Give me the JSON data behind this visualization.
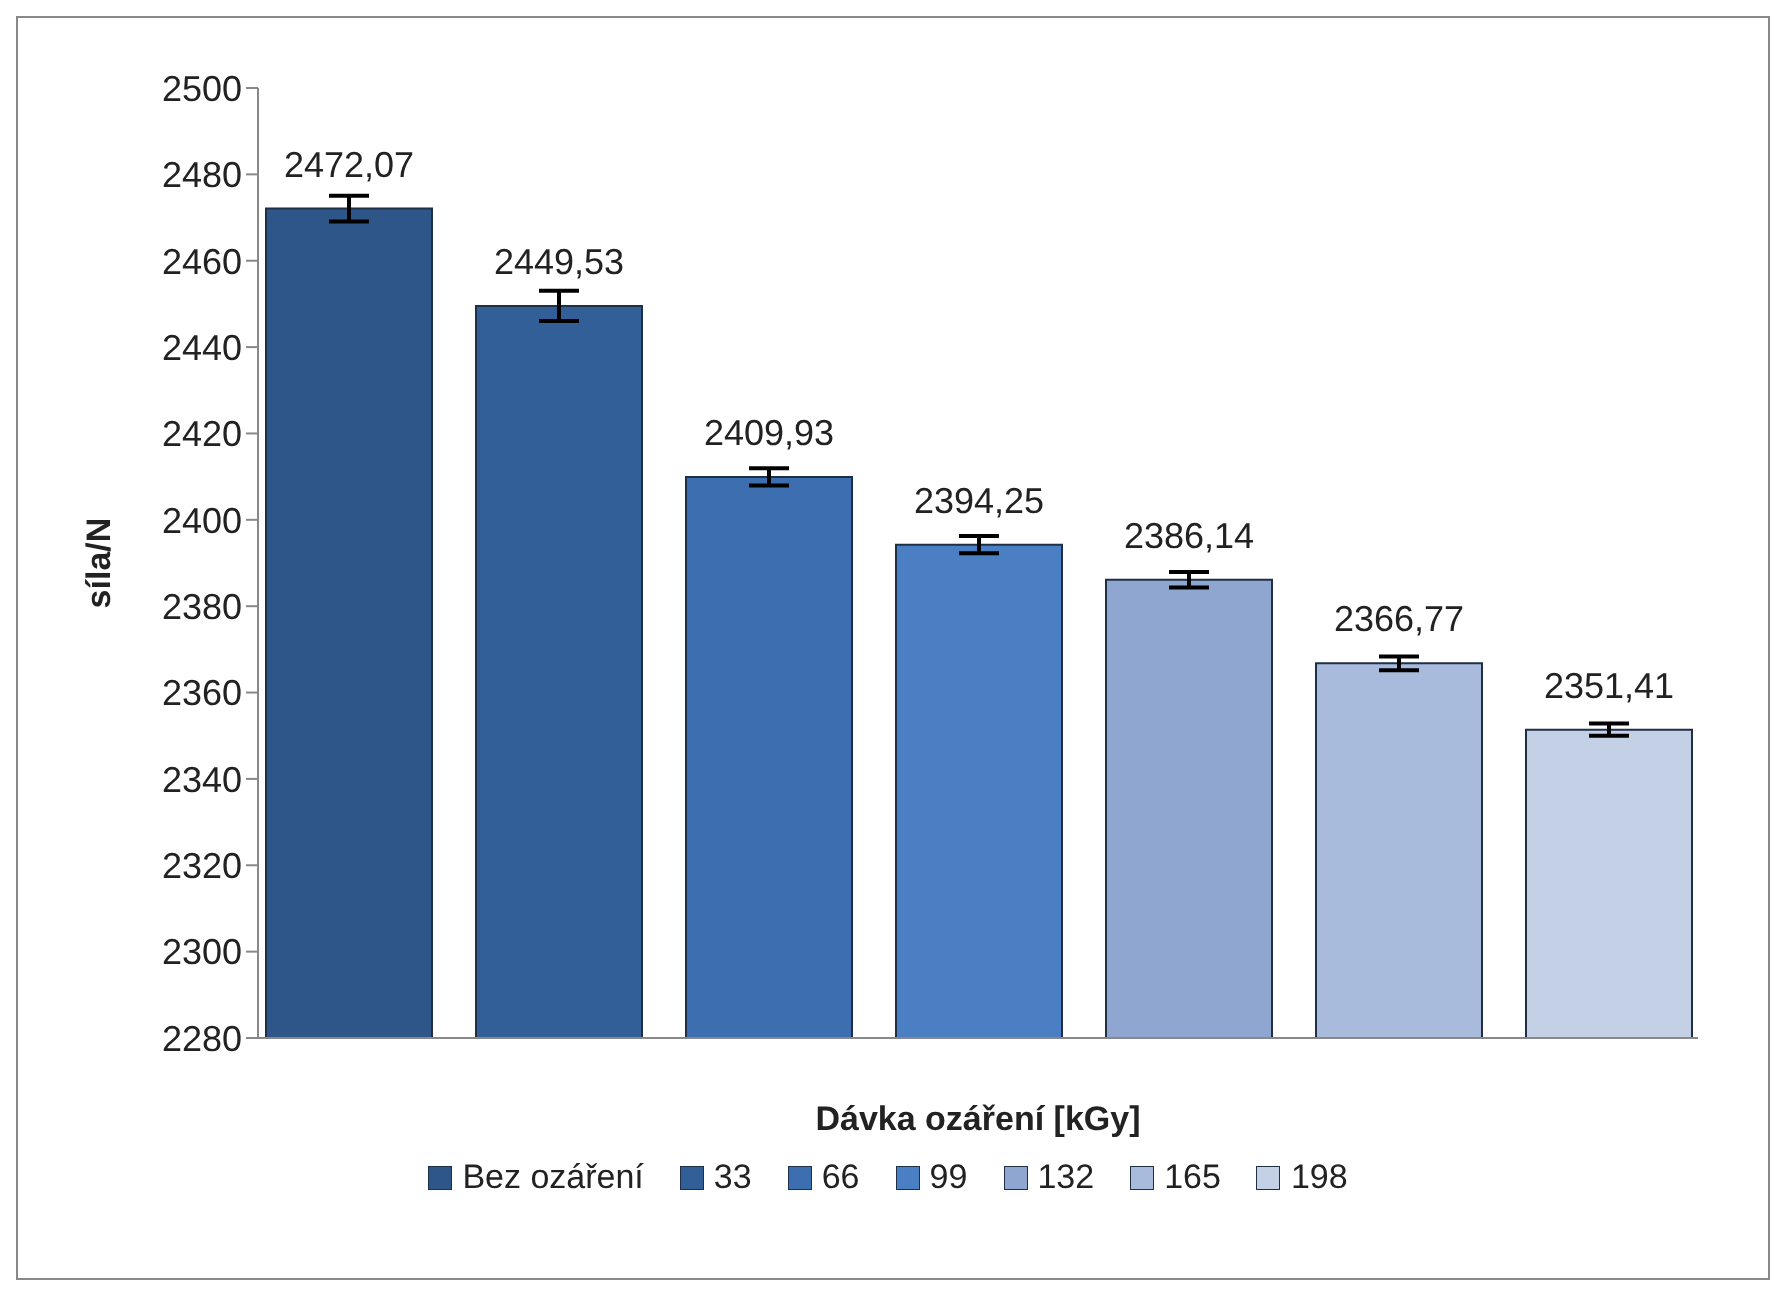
{
  "chart_data": {
    "type": "bar",
    "xlabel": "Dávka ozáření [kGy]",
    "ylabel": "síla/N",
    "categories": [
      null
    ],
    "series": [
      {
        "name": "Bez ozáření",
        "color": "#2f5688",
        "values": [
          2472.07
        ],
        "errors": [
          3
        ],
        "value_labels": [
          "2472,07"
        ]
      },
      {
        "name": "33",
        "color": "#335f98",
        "values": [
          2449.53
        ],
        "errors": [
          3.5
        ],
        "value_labels": [
          "2449,53"
        ]
      },
      {
        "name": "66",
        "color": "#3d6fb0",
        "values": [
          2409.93
        ],
        "errors": [
          2
        ],
        "value_labels": [
          "2409,93"
        ]
      },
      {
        "name": "99",
        "color": "#4a7fc4",
        "values": [
          2394.25
        ],
        "errors": [
          2
        ],
        "value_labels": [
          "2394,25"
        ]
      },
      {
        "name": "132",
        "color": "#8ea6d0",
        "values": [
          2386.14
        ],
        "errors": [
          1.8
        ],
        "value_labels": [
          "2386,14"
        ]
      },
      {
        "name": "165",
        "color": "#a9bbdc",
        "values": [
          2366.77
        ],
        "errors": [
          1.6
        ],
        "value_labels": [
          "2366,77"
        ]
      },
      {
        "name": "198",
        "color": "#c4d0e6",
        "values": [
          2351.41
        ],
        "errors": [
          1.4
        ],
        "value_labels": [
          "2351,41"
        ]
      }
    ],
    "ylim": [
      2280,
      2500
    ],
    "yticks": [
      2280,
      2300,
      2320,
      2340,
      2360,
      2380,
      2400,
      2420,
      2440,
      2460,
      2480,
      2500
    ],
    "grid": false,
    "legend": "bottom",
    "tick_labels": "y"
  }
}
